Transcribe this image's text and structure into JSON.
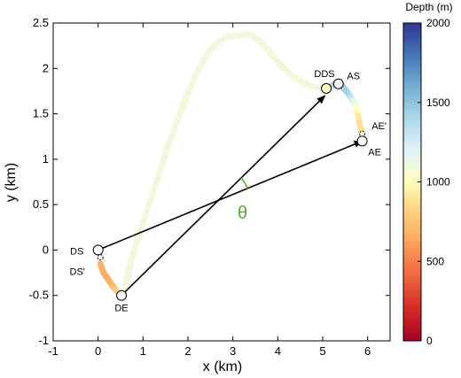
{
  "chart_data": {
    "type": "line",
    "xlabel": "x (km)",
    "ylabel": "y (km)",
    "xlim": [
      -1,
      6.5
    ],
    "ylim": [
      -1,
      2.5
    ],
    "xticks": [
      -1,
      0,
      1,
      2,
      3,
      4,
      5,
      6
    ],
    "yticks": [
      -1,
      -0.5,
      0,
      0.5,
      1,
      1.5,
      2,
      2.5
    ],
    "grid": false,
    "colorbar": {
      "title": "Depth (m)",
      "range": [
        0,
        2000
      ],
      "ticks": [
        0,
        500,
        1000,
        1500,
        2000
      ],
      "colormap": [
        "#a50026",
        "#f46d43",
        "#fdae61",
        "#fee090",
        "#ffffbf",
        "#e0f3f8",
        "#abd9e9",
        "#74add1",
        "#4575b4",
        "#313695"
      ]
    },
    "track": {
      "x": [
        0.05,
        0.12,
        0.22,
        0.33,
        0.45,
        0.55,
        0.75,
        1.0,
        1.3,
        1.6,
        1.9,
        2.2,
        2.5,
        2.8,
        3.1,
        3.4,
        3.7,
        3.95,
        4.2,
        4.5,
        4.8,
        5.05,
        5.35,
        5.6,
        5.75,
        5.82,
        5.87
      ],
      "y": [
        -0.15,
        -0.25,
        -0.32,
        -0.4,
        -0.47,
        -0.5,
        -0.1,
        0.3,
        0.75,
        1.2,
        1.6,
        1.95,
        2.2,
        2.33,
        2.36,
        2.37,
        2.25,
        2.1,
        1.97,
        1.86,
        1.8,
        1.78,
        1.83,
        1.7,
        1.55,
        1.4,
        1.28
      ],
      "depth": [
        480,
        460,
        450,
        480,
        620,
        1000,
        1000,
        1000,
        1000,
        1000,
        1000,
        1000,
        1000,
        1000,
        1000,
        1000,
        1000,
        1000,
        1000,
        1000,
        1000,
        1050,
        1450,
        1350,
        900,
        700,
        650
      ]
    },
    "points": [
      {
        "label": "DS",
        "x": 0.0,
        "y": 0.0
      },
      {
        "label": "DS'",
        "x": 0.05,
        "y": -0.08
      },
      {
        "label": "DE",
        "x": 0.52,
        "y": -0.5
      },
      {
        "label": "DDS",
        "x": 5.08,
        "y": 1.78
      },
      {
        "label": "AS",
        "x": 5.35,
        "y": 1.83
      },
      {
        "label": "AE'",
        "x": 5.88,
        "y": 1.28
      },
      {
        "label": "AE",
        "x": 5.88,
        "y": 1.2
      }
    ],
    "arrows": [
      {
        "from": [
          0.0,
          0.0
        ],
        "to": [
          5.88,
          1.2
        ]
      },
      {
        "from": [
          0.52,
          -0.5
        ],
        "to": [
          5.05,
          1.7
        ]
      }
    ],
    "annotation": {
      "text": "θ",
      "color": "#5aaa28"
    }
  }
}
